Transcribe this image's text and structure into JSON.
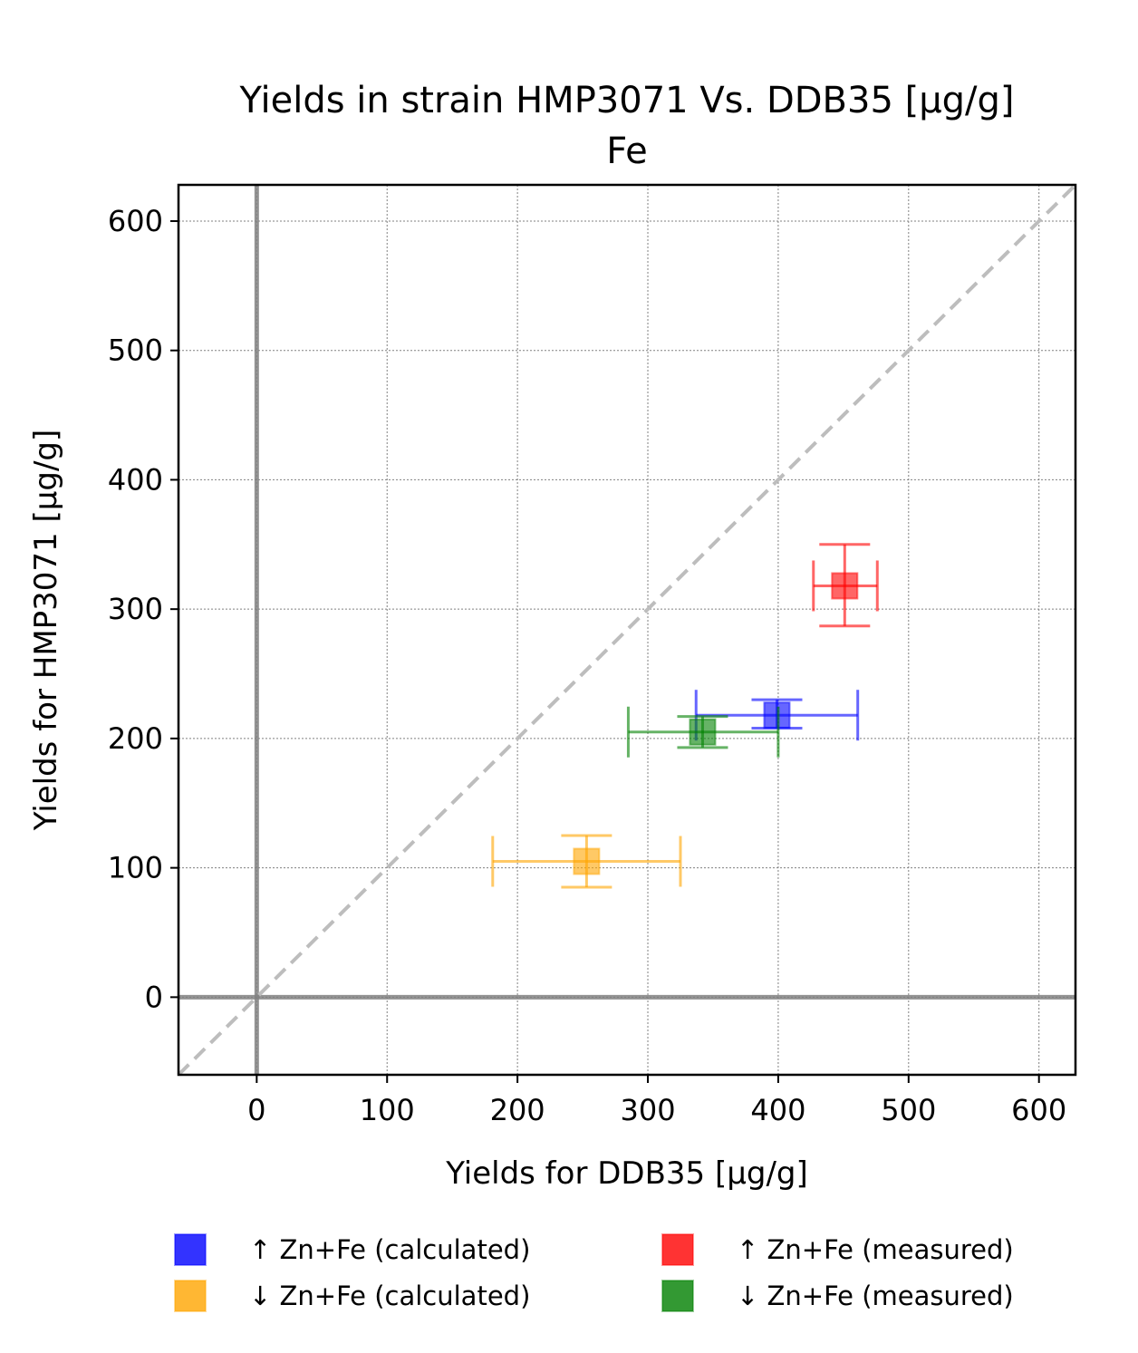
{
  "chart_data": {
    "type": "scatter",
    "title": "Yields in strain HMP3071 Vs. DDB35 [µg/g]",
    "subtitle": "Fe",
    "xlabel": "Yields for DDB35 [µg/g]",
    "ylabel": "Yields for HMP3071 [µg/g]",
    "xlim": [
      -60,
      628
    ],
    "ylim": [
      -60,
      628
    ],
    "xticks": [
      0,
      100,
      200,
      300,
      400,
      500,
      600
    ],
    "yticks": [
      0,
      100,
      200,
      300,
      400,
      500,
      600
    ],
    "grid": true,
    "reference_lines": {
      "x": 0,
      "y": 0,
      "diagonal": "y = x"
    },
    "legend_position": "bottom",
    "series": [
      {
        "name": "↑ Zn+Fe (calculated)",
        "color": "#0000ff",
        "points": [
          {
            "x": 399,
            "y": 218,
            "xerr_low": 337,
            "xerr_high": 461,
            "yerr_low": 208,
            "yerr_high": 230
          }
        ]
      },
      {
        "name": "↓ Zn+Fe (calculated)",
        "color": "#ffa500",
        "points": [
          {
            "x": 253,
            "y": 105,
            "xerr_low": 181,
            "xerr_high": 325,
            "yerr_low": 85,
            "yerr_high": 125
          }
        ]
      },
      {
        "name": "↑ Zn+Fe (measured)",
        "color": "#ff0000",
        "points": [
          {
            "x": 451,
            "y": 318,
            "xerr_low": 427,
            "xerr_high": 476,
            "yerr_low": 287,
            "yerr_high": 350
          }
        ]
      },
      {
        "name": "↓ Zn+Fe (measured)",
        "color": "#008000",
        "points": [
          {
            "x": 342,
            "y": 205,
            "xerr_low": 285,
            "xerr_high": 400,
            "yerr_low": 193,
            "yerr_high": 217
          }
        ]
      }
    ]
  }
}
